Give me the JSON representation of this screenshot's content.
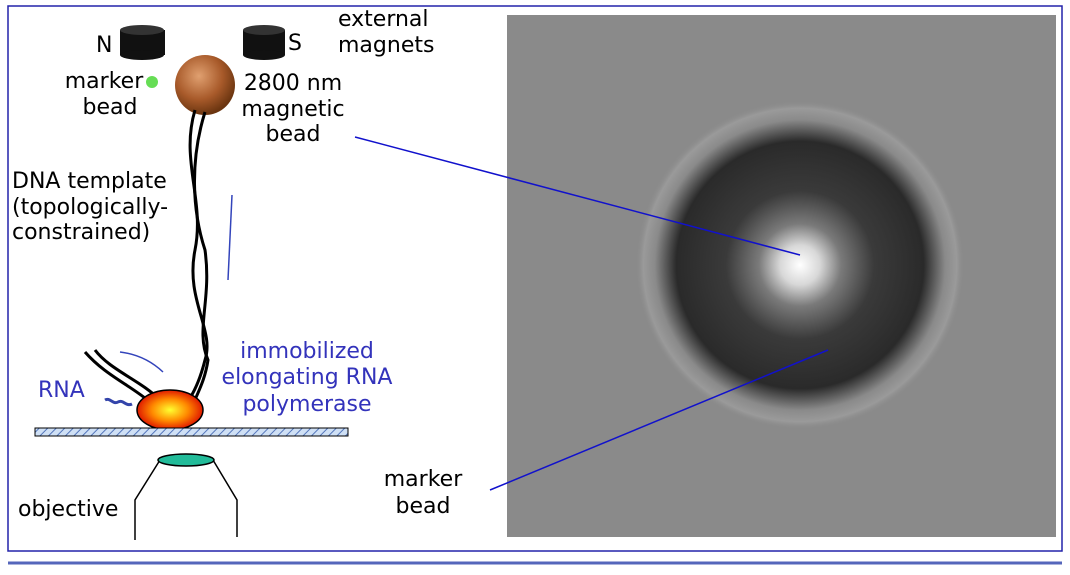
{
  "labels": {
    "north": "N",
    "south": "S",
    "external_magnets": [
      "external",
      "magnets"
    ],
    "marker_bead_left": [
      "marker",
      "bead"
    ],
    "magnetic_bead": [
      "2800 nm",
      "magnetic",
      "bead"
    ],
    "dna_template": [
      "DNA template",
      "(topologically-",
      "constrained)"
    ],
    "polymerase": [
      "immobilized",
      "elongating RNA",
      "polymerase"
    ],
    "rna": "RNA",
    "objective": "objective",
    "marker_bead_right": [
      "marker",
      "bead"
    ]
  }
}
